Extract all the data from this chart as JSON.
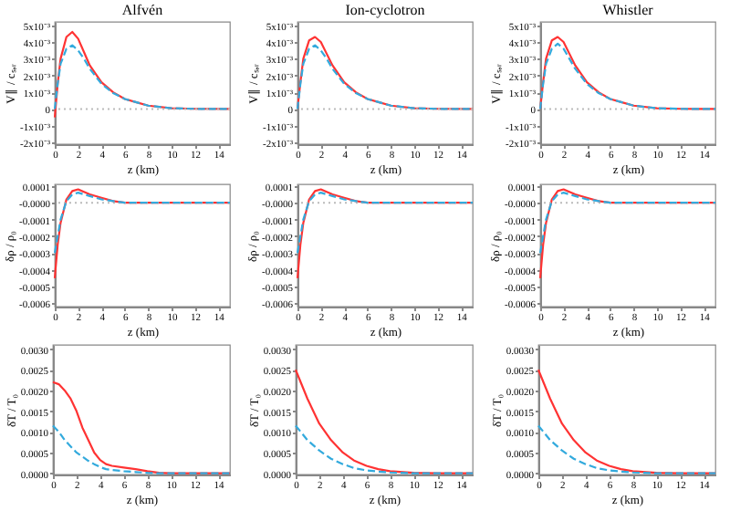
{
  "chart_data": [
    {
      "type": "line",
      "title": "Alfvén",
      "xlabel": "z (km)",
      "ylabel": "V∥ / cₛ,ᵣ",
      "xlim": [
        0,
        15
      ],
      "xticks": [
        0,
        2,
        4,
        6,
        8,
        10,
        12,
        14
      ],
      "ylim": [
        -0.0021,
        0.0052
      ],
      "yticks": [
        {
          "value": -0.002,
          "label": "-2x10⁻³"
        },
        {
          "value": -0.001,
          "label": "-1x10⁻³"
        },
        {
          "value": 0,
          "label": "0"
        },
        {
          "value": 0.001,
          "label": "1x10⁻³"
        },
        {
          "value": 0.002,
          "label": "2x10⁻³"
        },
        {
          "value": 0.003,
          "label": "3x10⁻³"
        },
        {
          "value": 0.004,
          "label": "4x10⁻³"
        },
        {
          "value": 0.005,
          "label": "5x10⁻³"
        }
      ],
      "ref_lines": [
        {
          "axis": "y",
          "value": 0,
          "color": "#bbbbbb",
          "line_style": "dotted"
        }
      ],
      "x": [
        0,
        0.25,
        0.5,
        1,
        1.5,
        2,
        2.5,
        3,
        4,
        5,
        6,
        7,
        8,
        10,
        12,
        15
      ],
      "series": [
        {
          "color": "#ff3333",
          "line_style": "solid",
          "values": [
            -0.0005,
            0.0015,
            0.003,
            0.0043,
            0.0046,
            0.0042,
            0.0034,
            0.0026,
            0.0016,
            0.001,
            0.0006,
            0.0004,
            0.0002,
            5e-05,
            1e-05,
            0
          ]
        },
        {
          "color": "#33aadd",
          "line_style": "dashed",
          "values": [
            0,
            0.0015,
            0.0027,
            0.0036,
            0.0038,
            0.0035,
            0.003,
            0.0024,
            0.0015,
            0.00095,
            0.0006,
            0.0004,
            0.0002,
            5e-05,
            1e-05,
            0
          ]
        }
      ]
    },
    {
      "type": "line",
      "title": "Ion-cyclotron",
      "xlabel": "z (km)",
      "ylabel": "V∥ / cₛ,ᵣ",
      "xlim": [
        0,
        15
      ],
      "xticks": [
        0,
        2,
        4,
        6,
        8,
        10,
        12,
        14
      ],
      "ylim": [
        -0.0021,
        0.0052
      ],
      "yticks": [
        {
          "value": -0.002,
          "label": "-2x10⁻³"
        },
        {
          "value": -0.001,
          "label": "-1x10⁻³"
        },
        {
          "value": 0,
          "label": "0"
        },
        {
          "value": 0.001,
          "label": "1x10⁻³"
        },
        {
          "value": 0.002,
          "label": "2x10⁻³"
        },
        {
          "value": 0.003,
          "label": "3x10⁻³"
        },
        {
          "value": 0.004,
          "label": "4x10⁻³"
        },
        {
          "value": 0.005,
          "label": "5x10⁻³"
        }
      ],
      "ref_lines": [
        {
          "axis": "y",
          "value": 0,
          "color": "#bbbbbb",
          "line_style": "dotted"
        }
      ],
      "x": [
        0,
        0.25,
        0.5,
        1,
        1.5,
        2,
        2.5,
        3,
        4,
        5,
        6,
        7,
        8,
        10,
        12,
        15
      ],
      "series": [
        {
          "color": "#ff3333",
          "line_style": "solid",
          "values": [
            0,
            0.0016,
            0.003,
            0.0041,
            0.0043,
            0.004,
            0.0033,
            0.0026,
            0.0016,
            0.001,
            0.0006,
            0.0004,
            0.0002,
            5e-05,
            1e-05,
            0
          ]
        },
        {
          "color": "#33aadd",
          "line_style": "dashed",
          "values": [
            0,
            0.0015,
            0.0027,
            0.0036,
            0.0038,
            0.0035,
            0.003,
            0.0024,
            0.0015,
            0.00095,
            0.0006,
            0.0004,
            0.0002,
            5e-05,
            1e-05,
            0
          ]
        }
      ]
    },
    {
      "type": "line",
      "title": "Whistler",
      "xlabel": "z (km)",
      "ylabel": "V∥ / cₛ,ᵣ",
      "xlim": [
        0,
        15
      ],
      "xticks": [
        0,
        2,
        4,
        6,
        8,
        10,
        12,
        14
      ],
      "ylim": [
        -0.0021,
        0.0052
      ],
      "yticks": [
        {
          "value": -0.002,
          "label": "-2x10⁻³"
        },
        {
          "value": -0.001,
          "label": "-1x10⁻³"
        },
        {
          "value": 0,
          "label": "0"
        },
        {
          "value": 0.001,
          "label": "1x10⁻³"
        },
        {
          "value": 0.002,
          "label": "2x10⁻³"
        },
        {
          "value": 0.003,
          "label": "3x10⁻³"
        },
        {
          "value": 0.004,
          "label": "4x10⁻³"
        },
        {
          "value": 0.005,
          "label": "5x10⁻³"
        }
      ],
      "ref_lines": [
        {
          "axis": "y",
          "value": 0,
          "color": "#bbbbbb",
          "line_style": "dotted"
        }
      ],
      "x": [
        0,
        0.25,
        0.5,
        1,
        1.5,
        2,
        2.5,
        3,
        4,
        5,
        6,
        7,
        8,
        10,
        12,
        15
      ],
      "series": [
        {
          "color": "#ff3333",
          "line_style": "solid",
          "values": [
            0,
            0.0016,
            0.003,
            0.0041,
            0.0043,
            0.004,
            0.0033,
            0.0026,
            0.0016,
            0.001,
            0.0006,
            0.0004,
            0.0002,
            5e-05,
            1e-05,
            0
          ]
        },
        {
          "color": "#33aadd",
          "line_style": "dashed",
          "values": [
            0,
            0.0015,
            0.0027,
            0.0036,
            0.0039,
            0.0036,
            0.003,
            0.0024,
            0.0015,
            0.00095,
            0.0006,
            0.0004,
            0.0002,
            5e-05,
            1e-05,
            0
          ]
        }
      ]
    },
    {
      "type": "line",
      "xlabel": "z (km)",
      "ylabel": "δρ / ρ₀",
      "xlim": [
        0,
        15
      ],
      "xticks": [
        0,
        2,
        4,
        6,
        8,
        10,
        12,
        14
      ],
      "ylim": [
        -0.00062,
        0.00011
      ],
      "yticks": [
        {
          "value": -0.0006,
          "label": "-0.0006"
        },
        {
          "value": -0.0005,
          "label": "-0.0005"
        },
        {
          "value": -0.0004,
          "label": "-0.0004"
        },
        {
          "value": -0.0003,
          "label": "-0.0003"
        },
        {
          "value": -0.0002,
          "label": "-0.0002"
        },
        {
          "value": -0.0001,
          "label": "-0.0001"
        },
        {
          "value": 0,
          "label": "-0.0000"
        },
        {
          "value": 0.0001,
          "label": "0.0001"
        }
      ],
      "ref_lines": [
        {
          "axis": "y",
          "value": 0,
          "color": "#bbbbbb",
          "line_style": "dotted"
        }
      ],
      "x": [
        0,
        0.25,
        0.5,
        1,
        1.5,
        2,
        3,
        4,
        5,
        6,
        8,
        10,
        15
      ],
      "series": [
        {
          "color": "#ff3333",
          "line_style": "solid",
          "values": [
            -0.00045,
            -0.00025,
            -0.00012,
            2e-05,
            7e-05,
            8e-05,
            5e-05,
            3e-05,
            1e-05,
            0,
            0,
            0,
            0
          ]
        },
        {
          "color": "#33aadd",
          "line_style": "dashed",
          "values": [
            -0.0003,
            -0.0002,
            -0.0001,
            1e-05,
            5e-05,
            6e-05,
            4e-05,
            2e-05,
            1e-05,
            0,
            0,
            0,
            0
          ]
        }
      ]
    },
    {
      "type": "line",
      "xlabel": "z (km)",
      "ylabel": "δρ / ρ₀",
      "xlim": [
        0,
        15
      ],
      "xticks": [
        0,
        2,
        4,
        6,
        8,
        10,
        12,
        14
      ],
      "ylim": [
        -0.00062,
        0.00011
      ],
      "yticks": [
        {
          "value": -0.0006,
          "label": "-0.0006"
        },
        {
          "value": -0.0005,
          "label": "-0.0005"
        },
        {
          "value": -0.0004,
          "label": "-0.0004"
        },
        {
          "value": -0.0003,
          "label": "-0.0003"
        },
        {
          "value": -0.0002,
          "label": "-0.0002"
        },
        {
          "value": -0.0001,
          "label": "-0.0001"
        },
        {
          "value": 0,
          "label": "-0.0000"
        },
        {
          "value": 0.0001,
          "label": "0.0001"
        }
      ],
      "ref_lines": [
        {
          "axis": "y",
          "value": 0,
          "color": "#bbbbbb",
          "line_style": "dotted"
        }
      ],
      "x": [
        0,
        0.25,
        0.5,
        1,
        1.5,
        2,
        3,
        4,
        5,
        6,
        8,
        10,
        15
      ],
      "series": [
        {
          "color": "#ff3333",
          "line_style": "solid",
          "values": [
            -0.00045,
            -0.00025,
            -0.00012,
            2e-05,
            7e-05,
            8e-05,
            5e-05,
            3e-05,
            1e-05,
            0,
            0,
            0,
            0
          ]
        },
        {
          "color": "#33aadd",
          "line_style": "dashed",
          "values": [
            -0.0003,
            -0.0002,
            -0.0001,
            1e-05,
            5e-05,
            6e-05,
            4e-05,
            2e-05,
            1e-05,
            0,
            0,
            0,
            0
          ]
        }
      ]
    },
    {
      "type": "line",
      "xlabel": "z (km)",
      "ylabel": "δρ / ρ₀",
      "xlim": [
        0,
        15
      ],
      "xticks": [
        0,
        2,
        4,
        6,
        8,
        10,
        12,
        14
      ],
      "ylim": [
        -0.00062,
        0.00011
      ],
      "yticks": [
        {
          "value": -0.0006,
          "label": "-0.0006"
        },
        {
          "value": -0.0005,
          "label": "-0.0005"
        },
        {
          "value": -0.0004,
          "label": "-0.0004"
        },
        {
          "value": -0.0003,
          "label": "-0.0003"
        },
        {
          "value": -0.0002,
          "label": "-0.0002"
        },
        {
          "value": -0.0001,
          "label": "-0.0001"
        },
        {
          "value": 0,
          "label": "-0.0000"
        },
        {
          "value": 0.0001,
          "label": "0.0001"
        }
      ],
      "ref_lines": [
        {
          "axis": "y",
          "value": 0,
          "color": "#bbbbbb",
          "line_style": "dotted"
        }
      ],
      "x": [
        0,
        0.25,
        0.5,
        1,
        1.5,
        2,
        3,
        4,
        5,
        6,
        8,
        10,
        15
      ],
      "series": [
        {
          "color": "#ff3333",
          "line_style": "solid",
          "values": [
            -0.00045,
            -0.00025,
            -0.00012,
            2e-05,
            7e-05,
            8e-05,
            5e-05,
            3e-05,
            1e-05,
            0,
            0,
            0,
            0
          ]
        },
        {
          "color": "#33aadd",
          "line_style": "dashed",
          "values": [
            -0.0003,
            -0.0002,
            -0.0001,
            1e-05,
            5e-05,
            6e-05,
            4e-05,
            2e-05,
            1e-05,
            0,
            0,
            0,
            0
          ]
        }
      ]
    },
    {
      "type": "line",
      "xlabel": "z (km)",
      "ylabel": "δT / T₀",
      "xlim": [
        0,
        15
      ],
      "xticks": [
        0,
        2,
        4,
        6,
        8,
        10,
        12,
        14
      ],
      "ylim": [
        -3e-05,
        0.0031
      ],
      "yticks": [
        {
          "value": 0,
          "label": "0.0000"
        },
        {
          "value": 0.0005,
          "label": "0.0005"
        },
        {
          "value": 0.001,
          "label": "0.0010"
        },
        {
          "value": 0.0015,
          "label": "0.0015"
        },
        {
          "value": 0.002,
          "label": "0.0020"
        },
        {
          "value": 0.0025,
          "label": "0.0025"
        },
        {
          "value": 0.003,
          "label": "0.0030"
        }
      ],
      "x": [
        0,
        0.5,
        1,
        1.5,
        2,
        2.5,
        3,
        3.5,
        4,
        4.5,
        5,
        6,
        7,
        8,
        9,
        10,
        12,
        15
      ],
      "series": [
        {
          "color": "#ff3333",
          "line_style": "solid",
          "values": [
            0.0022,
            0.00215,
            0.002,
            0.0018,
            0.0015,
            0.0011,
            0.0008,
            0.0005,
            0.00032,
            0.00022,
            0.00018,
            0.00014,
            0.0001,
            5e-05,
            1e-05,
            0,
            0,
            0
          ]
        },
        {
          "color": "#33aadd",
          "line_style": "dashed",
          "values": [
            0.00115,
            0.001,
            0.0008,
            0.00065,
            0.0005,
            0.0004,
            0.0003,
            0.00022,
            0.00015,
            0.0001,
            8e-05,
            5e-05,
            3e-05,
            1e-05,
            0,
            0,
            0,
            0
          ]
        }
      ]
    },
    {
      "type": "line",
      "xlabel": "z (km)",
      "ylabel": "δT / T₀",
      "xlim": [
        0,
        15
      ],
      "xticks": [
        0,
        2,
        4,
        6,
        8,
        10,
        12,
        14
      ],
      "ylim": [
        -3e-05,
        0.0031
      ],
      "yticks": [
        {
          "value": 0,
          "label": "0.0000"
        },
        {
          "value": 0.0005,
          "label": "0.0005"
        },
        {
          "value": 0.001,
          "label": "0.0010"
        },
        {
          "value": 0.0015,
          "label": "0.0015"
        },
        {
          "value": 0.002,
          "label": "0.0020"
        },
        {
          "value": 0.0025,
          "label": "0.0025"
        },
        {
          "value": 0.003,
          "label": "0.0030"
        }
      ],
      "x": [
        0,
        1,
        2,
        3,
        4,
        5,
        6,
        7,
        8,
        10,
        12,
        15
      ],
      "series": [
        {
          "color": "#ff3333",
          "line_style": "solid",
          "values": [
            0.0025,
            0.0018,
            0.0012,
            0.0008,
            0.0005,
            0.0003,
            0.00018,
            0.0001,
            5e-05,
            1e-05,
            0,
            0
          ]
        },
        {
          "color": "#33aadd",
          "line_style": "dashed",
          "values": [
            0.00115,
            0.0008,
            0.00055,
            0.00035,
            0.00022,
            0.00012,
            7e-05,
            4e-05,
            2e-05,
            0,
            0,
            0
          ]
        }
      ]
    },
    {
      "type": "line",
      "xlabel": "z (km)",
      "ylabel": "δT / T₀",
      "xlim": [
        0,
        15
      ],
      "xticks": [
        0,
        2,
        4,
        6,
        8,
        10,
        12,
        14
      ],
      "ylim": [
        -3e-05,
        0.0031
      ],
      "yticks": [
        {
          "value": 0,
          "label": "0.0000"
        },
        {
          "value": 0.0005,
          "label": "0.0005"
        },
        {
          "value": 0.001,
          "label": "0.0010"
        },
        {
          "value": 0.0015,
          "label": "0.0015"
        },
        {
          "value": 0.002,
          "label": "0.0020"
        },
        {
          "value": 0.0025,
          "label": "0.0025"
        },
        {
          "value": 0.003,
          "label": "0.0030"
        }
      ],
      "x": [
        0,
        1,
        2,
        3,
        4,
        5,
        6,
        7,
        8,
        10,
        12,
        15
      ],
      "series": [
        {
          "color": "#ff3333",
          "line_style": "solid",
          "values": [
            0.0025,
            0.0018,
            0.0012,
            0.0008,
            0.0005,
            0.0003,
            0.00018,
            0.0001,
            5e-05,
            1e-05,
            0,
            0
          ]
        },
        {
          "color": "#33aadd",
          "line_style": "dashed",
          "values": [
            0.00115,
            0.0008,
            0.00055,
            0.00035,
            0.00022,
            0.00012,
            7e-05,
            4e-05,
            2e-05,
            0,
            0,
            0
          ]
        }
      ]
    }
  ]
}
